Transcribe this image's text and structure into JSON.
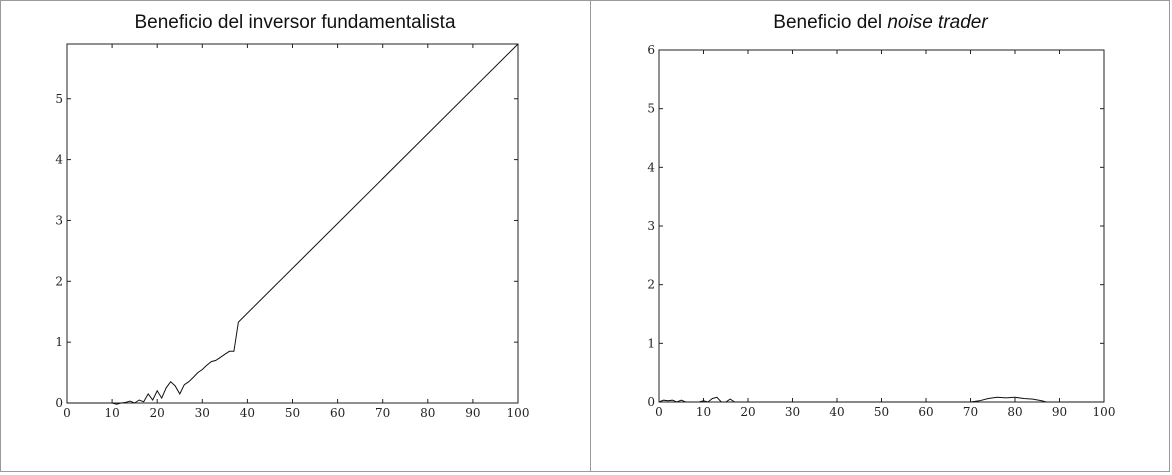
{
  "chart_data": [
    {
      "type": "line",
      "title": "Beneficio del inversor fundamentalista",
      "xlim": [
        0,
        100
      ],
      "ylim": [
        0,
        5.9
      ],
      "xticks": [
        0,
        10,
        20,
        30,
        40,
        50,
        60,
        70,
        80,
        90,
        100
      ],
      "yticks": [
        0,
        1,
        2,
        3,
        4,
        5
      ],
      "xticklabels": [
        "0",
        "10",
        "20",
        "30",
        "40",
        "50",
        "60",
        "70",
        "80",
        "90",
        "100"
      ],
      "yticklabels": [
        "0",
        "1",
        "2",
        "3",
        "4",
        "5"
      ],
      "grid": false,
      "series": [
        {
          "x": [
            0,
            10,
            11,
            12,
            13,
            14,
            15,
            16,
            17,
            18,
            19,
            20,
            21,
            22,
            23,
            24,
            25,
            26,
            27,
            28,
            29,
            30,
            31,
            32,
            33,
            34,
            35,
            36,
            37,
            38,
            100
          ],
          "y": [
            0,
            0,
            -0.02,
            0,
            0.01,
            0.03,
            0,
            0.05,
            0.02,
            0.15,
            0.05,
            0.2,
            0.08,
            0.25,
            0.35,
            0.28,
            0.15,
            0.3,
            0.35,
            0.42,
            0.5,
            0.55,
            0.62,
            0.68,
            0.7,
            0.75,
            0.8,
            0.85,
            0.85,
            1.33,
            5.9
          ]
        }
      ]
    },
    {
      "type": "line",
      "title": "Beneficio del noise trader",
      "xlim": [
        0,
        100
      ],
      "ylim": [
        0,
        6
      ],
      "xticks": [
        0,
        10,
        20,
        30,
        40,
        50,
        60,
        70,
        80,
        90,
        100
      ],
      "yticks": [
        0,
        1,
        2,
        3,
        4,
        5,
        6
      ],
      "xticklabels": [
        "0",
        "10",
        "20",
        "30",
        "40",
        "50",
        "60",
        "70",
        "80",
        "90",
        "100"
      ],
      "yticklabels": [
        "0",
        "1",
        "2",
        "3",
        "4",
        "5",
        "6"
      ],
      "grid": false,
      "series": [
        {
          "x": [
            0,
            1,
            2,
            3,
            4,
            5,
            6,
            7,
            8,
            9,
            10,
            11,
            12,
            13,
            14,
            15,
            16,
            17,
            18,
            70,
            72,
            74,
            76,
            78,
            80,
            82,
            84,
            86,
            87,
            100
          ],
          "y": [
            0,
            0.03,
            0.02,
            0.03,
            0,
            0.03,
            0,
            0,
            0,
            0,
            0.02,
            0,
            0.06,
            0.08,
            0,
            0,
            0.05,
            0,
            0,
            0,
            0.02,
            0.06,
            0.08,
            0.07,
            0.08,
            0.06,
            0.05,
            0.02,
            0,
            0
          ]
        }
      ]
    }
  ],
  "titles": {
    "left": "Beneficio del inversor fundamentalista",
    "right_prefix": "Beneficio del ",
    "right_italic": "noise trader"
  }
}
